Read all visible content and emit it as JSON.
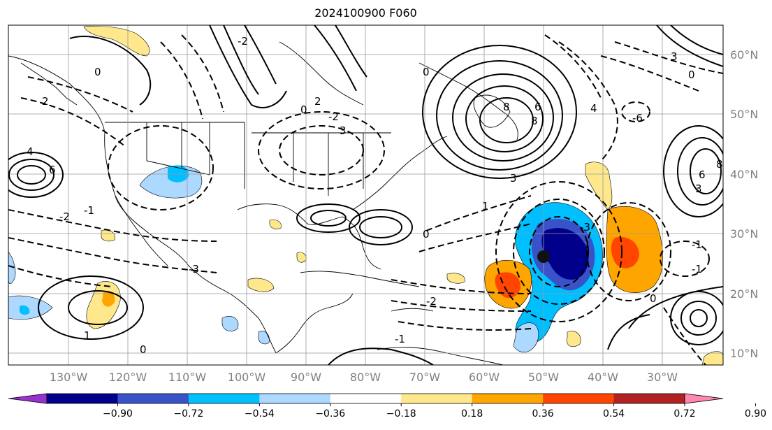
{
  "title": "2024100900 F060",
  "colorbar": {
    "colors": [
      "#9932CC",
      "#00008B",
      "#3A52C8",
      "#00BFFF",
      "#ADD8FF",
      "#FFFFFF",
      "#FFE88C",
      "#FFA500",
      "#FF4500",
      "#B22222",
      "#FF88B0"
    ],
    "tick_labels": [
      "−0.90",
      "−0.72",
      "−0.54",
      "−0.36",
      "−0.18",
      "0.18",
      "0.36",
      "0.54",
      "0.72",
      "0.90"
    ]
  },
  "latitude_labels": [
    "10°N",
    "20°N",
    "30°N",
    "40°N",
    "50°N",
    "60°N"
  ],
  "longitude_labels": [
    "130°W",
    "120°W",
    "110°W",
    "100°W",
    "90°W",
    "80°W",
    "70°W",
    "60°W",
    "50°W",
    "40°W",
    "30°W"
  ],
  "contour_labels": [
    "0",
    "2",
    "4",
    "6",
    "8",
    "3",
    "1",
    "3",
    "6",
    "8",
    "0",
    "-2",
    "-1",
    "0",
    "-3",
    "-1",
    "-2",
    "-2",
    "0",
    "2",
    "3",
    "3",
    "6",
    "8",
    "1",
    "0",
    "4",
    "0",
    "-1",
    "-6",
    "-2",
    "-3",
    "-1",
    "0"
  ]
}
